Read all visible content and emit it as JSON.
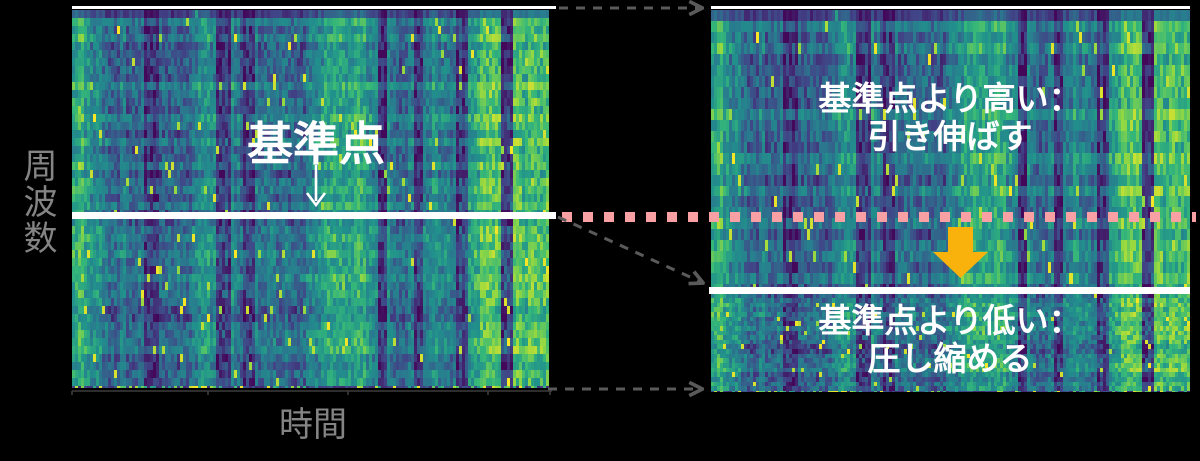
{
  "figure": {
    "background": "#000000",
    "panels": {
      "left": {
        "type": "spectrogram",
        "y_axis_label": "周波数",
        "x_axis_label": "時間",
        "reference_annotation": "基準点"
      },
      "right": {
        "type": "spectrogram",
        "upper_region_label": [
          "基準点より高い：",
          "引き伸ばす"
        ],
        "lower_region_label": [
          "基準点より低い：",
          "圧し縮める"
        ]
      }
    },
    "colors": {
      "reference_line": "#ffffff",
      "reference_guide_dotted": "#f8a0a3",
      "transform_arrow": "#f9b10c",
      "connector_arrow": "#5a5a5a",
      "axis_label_text": "#848484",
      "annotation_text": "#ffffff",
      "axis_line": "#3c3c3c"
    }
  }
}
